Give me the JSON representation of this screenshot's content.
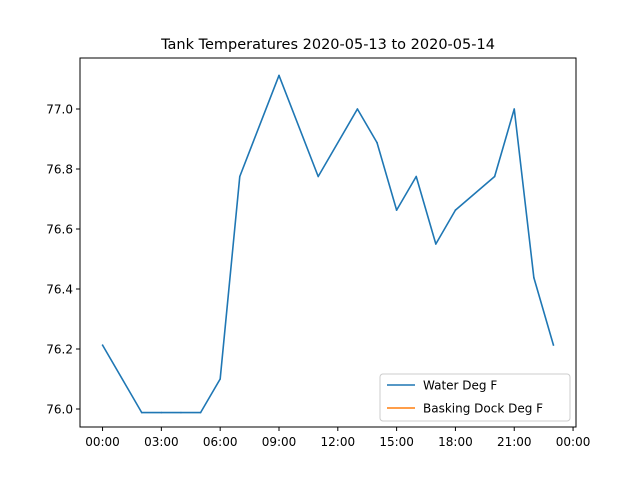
{
  "chart_data": {
    "type": "line",
    "title": "Tank Temperatures 2020-05-13 to 2020-05-14",
    "xlabel": "",
    "ylabel": "",
    "x_ticks": [
      "00:00",
      "03:00",
      "06:00",
      "09:00",
      "12:00",
      "15:00",
      "18:00",
      "21:00",
      "00:00"
    ],
    "x_tick_hours": [
      0,
      3,
      6,
      9,
      12,
      15,
      18,
      21,
      24
    ],
    "xlim": [
      -1.15,
      24.15
    ],
    "y_ticks": [
      "76.0",
      "76.2",
      "76.4",
      "76.6",
      "76.8",
      "77.0"
    ],
    "y_tick_values": [
      76.0,
      76.2,
      76.4,
      76.6,
      76.8,
      77.0
    ],
    "ylim": [
      75.94,
      77.17
    ],
    "grid": false,
    "legend_position": "lower right",
    "series": [
      {
        "name": "Water Deg F",
        "color": "#1f77b4",
        "x_hours": [
          0,
          2,
          3,
          4,
          5,
          6,
          7,
          9,
          11,
          13,
          14,
          15,
          16,
          17,
          18,
          20,
          21,
          22,
          23
        ],
        "values": [
          76.213,
          75.988,
          75.988,
          75.988,
          75.988,
          76.1,
          76.775,
          77.112,
          76.775,
          77.0,
          76.888,
          76.663,
          76.775,
          76.55,
          76.663,
          76.775,
          77.0,
          76.438,
          76.213
        ]
      },
      {
        "name": "Basking Dock Deg F",
        "color": "#ff7f0e",
        "x_hours": [],
        "values": []
      }
    ]
  }
}
